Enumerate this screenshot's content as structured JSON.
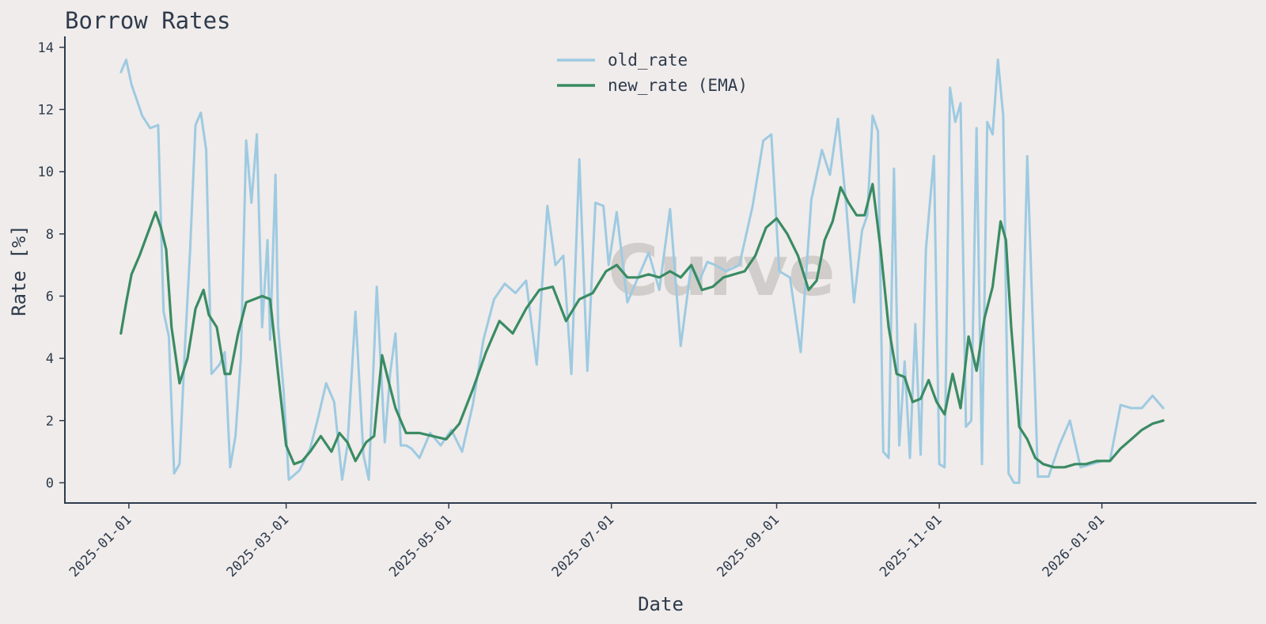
{
  "chart_data": {
    "type": "line",
    "title": "Borrow Rates",
    "xlabel": "Date",
    "ylabel": "Rate [%]",
    "x_ticks": [
      "2025-01-01",
      "2025-03-01",
      "2025-05-01",
      "2025-07-01",
      "2025-09-01",
      "2025-11-01",
      "2026-01-01"
    ],
    "y_ticks": [
      0,
      2,
      4,
      6,
      8,
      10,
      12,
      14
    ],
    "ylim": [
      -0.65,
      14.35
    ],
    "xlim": [
      "2024-12-08",
      "2026-02-28"
    ],
    "grid": false,
    "legend_position": "top-center",
    "watermark": "Curve",
    "series": [
      {
        "name": "old_rate",
        "color": "#9ecae1",
        "x": [
          "2024-12-29",
          "2024-12-31",
          "2025-01-02",
          "2025-01-04",
          "2025-01-06",
          "2025-01-09",
          "2025-01-12",
          "2025-01-14",
          "2025-01-16",
          "2025-01-18",
          "2025-01-20",
          "2025-01-22",
          "2025-01-24",
          "2025-01-26",
          "2025-01-28",
          "2025-01-30",
          "2025-02-01",
          "2025-02-04",
          "2025-02-06",
          "2025-02-08",
          "2025-02-10",
          "2025-02-12",
          "2025-02-14",
          "2025-02-16",
          "2025-02-18",
          "2025-02-20",
          "2025-02-22",
          "2025-02-23",
          "2025-02-25",
          "2025-02-26",
          "2025-02-28",
          "2025-03-02",
          "2025-03-06",
          "2025-03-10",
          "2025-03-13",
          "2025-03-16",
          "2025-03-19",
          "2025-03-22",
          "2025-03-24",
          "2025-03-27",
          "2025-03-30",
          "2025-04-01",
          "2025-04-04",
          "2025-04-07",
          "2025-04-09",
          "2025-04-11",
          "2025-04-13",
          "2025-04-15",
          "2025-04-17",
          "2025-04-20",
          "2025-04-24",
          "2025-04-28",
          "2025-05-02",
          "2025-05-06",
          "2025-05-10",
          "2025-05-14",
          "2025-05-18",
          "2025-05-22",
          "2025-05-26",
          "2025-05-30",
          "2025-06-03",
          "2025-06-07",
          "2025-06-10",
          "2025-06-13",
          "2025-06-16",
          "2025-06-19",
          "2025-06-22",
          "2025-06-25",
          "2025-06-28",
          "2025-06-30",
          "2025-07-03",
          "2025-07-07",
          "2025-07-11",
          "2025-07-15",
          "2025-07-19",
          "2025-07-23",
          "2025-07-27",
          "2025-07-31",
          "2025-08-03",
          "2025-08-06",
          "2025-08-09",
          "2025-08-13",
          "2025-08-18",
          "2025-08-23",
          "2025-08-27",
          "2025-08-30",
          "2025-09-02",
          "2025-09-06",
          "2025-09-10",
          "2025-09-14",
          "2025-09-18",
          "2025-09-21",
          "2025-09-24",
          "2025-09-27",
          "2025-09-30",
          "2025-10-03",
          "2025-10-05",
          "2025-10-07",
          "2025-10-09",
          "2025-10-11",
          "2025-10-13",
          "2025-10-15",
          "2025-10-17",
          "2025-10-19",
          "2025-10-21",
          "2025-10-23",
          "2025-10-25",
          "2025-10-27",
          "2025-10-30",
          "2025-11-01",
          "2025-11-03",
          "2025-11-05",
          "2025-11-07",
          "2025-11-09",
          "2025-11-11",
          "2025-11-13",
          "2025-11-15",
          "2025-11-17",
          "2025-11-19",
          "2025-11-21",
          "2025-11-23",
          "2025-11-25",
          "2025-11-27",
          "2025-11-29",
          "2025-12-01",
          "2025-12-04",
          "2025-12-08",
          "2025-12-12",
          "2025-12-16",
          "2025-12-20",
          "2025-12-24",
          "2025-12-28",
          "2026-01-01",
          "2026-01-04",
          "2026-01-08",
          "2026-01-12",
          "2026-01-16",
          "2026-01-20",
          "2026-01-24"
        ],
        "values": [
          13.2,
          13.6,
          12.8,
          12.3,
          11.8,
          11.4,
          11.5,
          5.5,
          4.7,
          0.3,
          0.6,
          4.3,
          7.5,
          11.5,
          11.9,
          10.7,
          3.5,
          3.8,
          4.2,
          0.5,
          1.5,
          4.0,
          11.0,
          9.0,
          11.2,
          5.0,
          7.8,
          4.6,
          9.9,
          5.0,
          3.0,
          0.1,
          0.4,
          1.1,
          2.1,
          3.2,
          2.6,
          0.1,
          1.2,
          5.5,
          0.9,
          0.1,
          6.3,
          1.3,
          3.5,
          4.8,
          1.2,
          1.2,
          1.1,
          0.8,
          1.6,
          1.2,
          1.7,
          1.0,
          2.5,
          4.6,
          5.9,
          6.4,
          6.1,
          6.5,
          3.8,
          8.9,
          7.0,
          7.3,
          3.5,
          10.4,
          3.6,
          9.0,
          8.9,
          7.0,
          8.7,
          5.8,
          6.6,
          7.4,
          6.2,
          8.8,
          4.4,
          7.0,
          6.5,
          7.1,
          7.0,
          6.8,
          7.0,
          8.9,
          11.0,
          11.2,
          6.8,
          6.6,
          4.2,
          9.1,
          10.7,
          9.9,
          11.7,
          9.0,
          5.8,
          8.1,
          8.6,
          11.8,
          11.3,
          1.0,
          0.8,
          10.1,
          1.2,
          3.9,
          0.8,
          5.1,
          0.9,
          7.5,
          10.5,
          0.6,
          0.5,
          12.7,
          11.6,
          12.2,
          1.8,
          2.0,
          11.4,
          0.6,
          11.6,
          11.2,
          13.6,
          11.8,
          0.3,
          0.0,
          0.0,
          10.5,
          0.2,
          0.2,
          1.2,
          2.0,
          0.5,
          0.6,
          0.7,
          0.7,
          2.5,
          2.4,
          2.4,
          2.8,
          2.4
        ]
      },
      {
        "name": "new_rate (EMA)",
        "color": "#3a8b63",
        "x": [
          "2024-12-29",
          "2024-12-31",
          "2025-01-02",
          "2025-01-05",
          "2025-01-08",
          "2025-01-11",
          "2025-01-13",
          "2025-01-15",
          "2025-01-17",
          "2025-01-20",
          "2025-01-23",
          "2025-01-26",
          "2025-01-29",
          "2025-01-31",
          "2025-02-03",
          "2025-02-06",
          "2025-02-08",
          "2025-02-11",
          "2025-02-14",
          "2025-02-17",
          "2025-02-20",
          "2025-02-23",
          "2025-02-26",
          "2025-03-01",
          "2025-03-04",
          "2025-03-07",
          "2025-03-10",
          "2025-03-14",
          "2025-03-18",
          "2025-03-21",
          "2025-03-24",
          "2025-03-27",
          "2025-03-31",
          "2025-04-03",
          "2025-04-06",
          "2025-04-08",
          "2025-04-11",
          "2025-04-15",
          "2025-04-20",
          "2025-04-25",
          "2025-04-30",
          "2025-05-05",
          "2025-05-10",
          "2025-05-15",
          "2025-05-20",
          "2025-05-25",
          "2025-05-30",
          "2025-06-04",
          "2025-06-09",
          "2025-06-14",
          "2025-06-19",
          "2025-06-24",
          "2025-06-29",
          "2025-07-03",
          "2025-07-07",
          "2025-07-11",
          "2025-07-15",
          "2025-07-19",
          "2025-07-23",
          "2025-07-27",
          "2025-07-31",
          "2025-08-04",
          "2025-08-08",
          "2025-08-12",
          "2025-08-16",
          "2025-08-20",
          "2025-08-24",
          "2025-08-28",
          "2025-09-01",
          "2025-09-05",
          "2025-09-09",
          "2025-09-13",
          "2025-09-16",
          "2025-09-19",
          "2025-09-22",
          "2025-09-25",
          "2025-09-28",
          "2025-10-01",
          "2025-10-04",
          "2025-10-07",
          "2025-10-10",
          "2025-10-13",
          "2025-10-16",
          "2025-10-19",
          "2025-10-22",
          "2025-10-25",
          "2025-10-28",
          "2025-10-31",
          "2025-11-03",
          "2025-11-06",
          "2025-11-09",
          "2025-11-12",
          "2025-11-15",
          "2025-11-18",
          "2025-11-21",
          "2025-11-24",
          "2025-11-26",
          "2025-11-28",
          "2025-12-01",
          "2025-12-04",
          "2025-12-07",
          "2025-12-10",
          "2025-12-14",
          "2025-12-18",
          "2025-12-22",
          "2025-12-26",
          "2025-12-30",
          "2026-01-04",
          "2026-01-08",
          "2026-01-12",
          "2026-01-16",
          "2026-01-20",
          "2026-01-24"
        ],
        "values": [
          4.8,
          5.8,
          6.7,
          7.3,
          8.0,
          8.7,
          8.2,
          7.5,
          5.0,
          3.2,
          4.0,
          5.6,
          6.2,
          5.4,
          5.0,
          3.5,
          3.5,
          4.8,
          5.8,
          5.9,
          6.0,
          5.9,
          3.5,
          1.2,
          0.6,
          0.7,
          1.0,
          1.5,
          1.0,
          1.6,
          1.3,
          0.7,
          1.3,
          1.5,
          4.1,
          3.4,
          2.4,
          1.6,
          1.6,
          1.5,
          1.4,
          1.9,
          3.0,
          4.2,
          5.2,
          4.8,
          5.6,
          6.2,
          6.3,
          5.2,
          5.9,
          6.1,
          6.8,
          7.0,
          6.6,
          6.6,
          6.7,
          6.6,
          6.8,
          6.6,
          7.0,
          6.2,
          6.3,
          6.6,
          6.7,
          6.8,
          7.3,
          8.2,
          8.5,
          8.0,
          7.3,
          6.2,
          6.5,
          7.8,
          8.4,
          9.5,
          9.0,
          8.6,
          8.6,
          9.6,
          7.5,
          5.0,
          3.5,
          3.4,
          2.6,
          2.7,
          3.3,
          2.6,
          2.2,
          3.5,
          2.4,
          4.7,
          3.6,
          5.3,
          6.3,
          8.4,
          7.8,
          5.0,
          1.8,
          1.4,
          0.8,
          0.6,
          0.5,
          0.5,
          0.6,
          0.6,
          0.7,
          0.7,
          1.1,
          1.4,
          1.7,
          1.9,
          2.0
        ]
      }
    ]
  }
}
